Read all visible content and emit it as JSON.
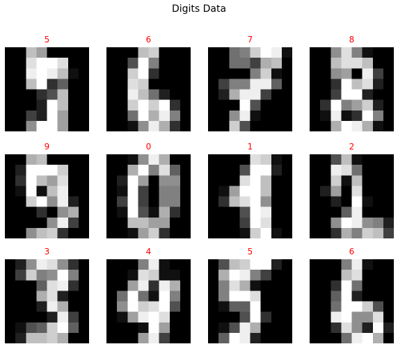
{
  "chart_data": {
    "type": "heatmap",
    "title": "Digits Data",
    "colormap": "gray",
    "value_range": [
      0,
      16
    ],
    "grid": false,
    "label_color": "#ff0000",
    "panels": [
      {
        "label": "5",
        "pixels": [
          [
            0,
            0,
            12,
            10,
            0,
            0,
            0,
            0
          ],
          [
            0,
            0,
            14,
            16,
            16,
            14,
            0,
            0
          ],
          [
            0,
            0,
            15,
            16,
            15,
            12,
            1,
            0
          ],
          [
            0,
            0,
            12,
            16,
            3,
            6,
            0,
            0
          ],
          [
            0,
            0,
            0,
            3,
            5,
            12,
            0,
            0
          ],
          [
            0,
            0,
            0,
            2,
            16,
            12,
            0,
            0
          ],
          [
            0,
            0,
            4,
            2,
            16,
            10,
            0,
            0
          ],
          [
            0,
            0,
            9,
            16,
            16,
            10,
            0,
            0
          ]
        ]
      },
      {
        "label": "6",
        "pixels": [
          [
            0,
            0,
            0,
            12,
            13,
            0,
            0,
            0
          ],
          [
            0,
            0,
            5,
            16,
            8,
            0,
            0,
            0
          ],
          [
            0,
            0,
            13,
            16,
            3,
            0,
            0,
            0
          ],
          [
            0,
            0,
            14,
            13,
            0,
            0,
            0,
            0
          ],
          [
            0,
            0,
            15,
            12,
            7,
            2,
            0,
            0
          ],
          [
            0,
            0,
            13,
            16,
            13,
            16,
            3,
            0
          ],
          [
            0,
            0,
            7,
            16,
            11,
            15,
            8,
            0
          ],
          [
            0,
            0,
            1,
            9,
            15,
            11,
            3,
            0
          ]
        ]
      },
      {
        "label": "7",
        "pixels": [
          [
            0,
            0,
            7,
            8,
            13,
            16,
            15,
            1
          ],
          [
            0,
            0,
            7,
            7,
            4,
            11,
            12,
            0
          ],
          [
            0,
            0,
            0,
            0,
            8,
            13,
            1,
            0
          ],
          [
            0,
            4,
            8,
            8,
            15,
            15,
            6,
            0
          ],
          [
            0,
            2,
            11,
            15,
            15,
            4,
            0,
            0
          ],
          [
            0,
            0,
            0,
            16,
            5,
            0,
            0,
            0
          ],
          [
            0,
            0,
            9,
            15,
            1,
            0,
            0,
            0
          ],
          [
            0,
            0,
            13,
            5,
            0,
            0,
            0,
            0
          ]
        ]
      },
      {
        "label": "8",
        "pixels": [
          [
            0,
            0,
            9,
            14,
            8,
            1,
            0,
            0
          ],
          [
            0,
            0,
            12,
            14,
            14,
            12,
            0,
            0
          ],
          [
            0,
            0,
            9,
            10,
            0,
            15,
            4,
            0
          ],
          [
            0,
            0,
            3,
            16,
            12,
            14,
            2,
            0
          ],
          [
            0,
            0,
            4,
            16,
            16,
            2,
            0,
            0
          ],
          [
            0,
            3,
            16,
            8,
            10,
            13,
            2,
            0
          ],
          [
            0,
            1,
            15,
            1,
            3,
            16,
            8,
            0
          ],
          [
            0,
            0,
            11,
            16,
            15,
            11,
            1,
            0
          ]
        ]
      },
      {
        "label": "9",
        "pixels": [
          [
            0,
            0,
            11,
            12,
            0,
            0,
            0,
            0
          ],
          [
            0,
            2,
            16,
            16,
            16,
            13,
            0,
            0
          ],
          [
            0,
            3,
            16,
            12,
            10,
            14,
            0,
            0
          ],
          [
            0,
            1,
            16,
            1,
            12,
            15,
            0,
            0
          ],
          [
            0,
            0,
            13,
            16,
            9,
            15,
            2,
            0
          ],
          [
            0,
            0,
            0,
            3,
            0,
            9,
            11,
            0
          ],
          [
            0,
            0,
            0,
            0,
            9,
            15,
            4,
            0
          ],
          [
            0,
            0,
            9,
            12,
            13,
            3,
            0,
            0
          ]
        ]
      },
      {
        "label": "0",
        "pixels": [
          [
            0,
            0,
            1,
            9,
            15,
            11,
            0,
            0
          ],
          [
            0,
            0,
            11,
            16,
            8,
            14,
            6,
            0
          ],
          [
            0,
            2,
            16,
            10,
            0,
            9,
            9,
            0
          ],
          [
            0,
            1,
            16,
            4,
            0,
            8,
            8,
            0
          ],
          [
            0,
            4,
            16,
            4,
            0,
            8,
            8,
            0
          ],
          [
            0,
            1,
            16,
            5,
            1,
            11,
            3,
            0
          ],
          [
            0,
            0,
            12,
            12,
            10,
            10,
            0,
            0
          ],
          [
            0,
            0,
            1,
            10,
            13,
            3,
            0,
            0
          ]
        ]
      },
      {
        "label": "1",
        "pixels": [
          [
            0,
            0,
            0,
            0,
            14,
            13,
            1,
            0
          ],
          [
            0,
            0,
            0,
            5,
            16,
            16,
            2,
            0
          ],
          [
            0,
            0,
            0,
            14,
            16,
            12,
            0,
            0
          ],
          [
            0,
            1,
            10,
            16,
            16,
            12,
            0,
            0
          ],
          [
            0,
            3,
            12,
            14,
            16,
            9,
            0,
            0
          ],
          [
            0,
            0,
            0,
            5,
            16,
            15,
            0,
            0
          ],
          [
            0,
            0,
            0,
            4,
            16,
            14,
            0,
            0
          ],
          [
            0,
            0,
            0,
            1,
            13,
            16,
            1,
            0
          ]
        ]
      },
      {
        "label": "2",
        "pixels": [
          [
            0,
            0,
            5,
            12,
            1,
            0,
            0,
            0
          ],
          [
            0,
            0,
            15,
            14,
            7,
            0,
            0,
            0
          ],
          [
            0,
            0,
            13,
            1,
            12,
            0,
            0,
            0
          ],
          [
            0,
            2,
            10,
            0,
            14,
            0,
            0,
            0
          ],
          [
            0,
            0,
            2,
            0,
            16,
            1,
            0,
            0
          ],
          [
            0,
            0,
            0,
            6,
            15,
            0,
            0,
            0
          ],
          [
            0,
            0,
            9,
            16,
            15,
            9,
            8,
            2
          ],
          [
            0,
            0,
            3,
            11,
            8,
            13,
            12,
            4
          ]
        ]
      },
      {
        "label": "3",
        "pixels": [
          [
            0,
            2,
            9,
            15,
            14,
            9,
            3,
            0
          ],
          [
            0,
            4,
            13,
            8,
            9,
            16,
            8,
            0
          ],
          [
            0,
            0,
            0,
            6,
            14,
            15,
            3,
            0
          ],
          [
            0,
            0,
            0,
            11,
            14,
            2,
            0,
            0
          ],
          [
            0,
            0,
            0,
            2,
            15,
            11,
            0,
            0
          ],
          [
            0,
            0,
            0,
            0,
            2,
            15,
            4,
            0
          ],
          [
            0,
            1,
            5,
            6,
            13,
            16,
            6,
            0
          ],
          [
            0,
            2,
            12,
            12,
            13,
            11,
            0,
            0
          ]
        ]
      },
      {
        "label": "4",
        "pixels": [
          [
            0,
            0,
            0,
            8,
            15,
            1,
            0,
            0
          ],
          [
            0,
            0,
            1,
            14,
            13,
            1,
            1,
            0
          ],
          [
            0,
            0,
            10,
            15,
            3,
            15,
            11,
            0
          ],
          [
            0,
            7,
            16,
            7,
            1,
            16,
            8,
            0
          ],
          [
            0,
            9,
            16,
            13,
            14,
            16,
            5,
            0
          ],
          [
            0,
            1,
            10,
            15,
            16,
            14,
            0,
            0
          ],
          [
            0,
            0,
            0,
            1,
            16,
            10,
            0,
            0
          ],
          [
            0,
            0,
            0,
            10,
            15,
            4,
            0,
            0
          ]
        ]
      },
      {
        "label": "5",
        "pixels": [
          [
            0,
            5,
            12,
            13,
            16,
            16,
            2,
            0
          ],
          [
            0,
            11,
            16,
            15,
            8,
            4,
            0,
            0
          ],
          [
            0,
            8,
            14,
            11,
            1,
            0,
            0,
            0
          ],
          [
            0,
            8,
            16,
            16,
            14,
            0,
            0,
            0
          ],
          [
            0,
            1,
            6,
            6,
            16,
            0,
            0,
            0
          ],
          [
            0,
            0,
            0,
            5,
            16,
            3,
            0,
            0
          ],
          [
            0,
            1,
            5,
            15,
            11,
            0,
            0,
            0
          ],
          [
            0,
            6,
            16,
            15,
            2,
            0,
            0,
            0
          ]
        ]
      },
      {
        "label": "6",
        "pixels": [
          [
            0,
            0,
            0,
            8,
            15,
            1,
            0,
            0
          ],
          [
            0,
            0,
            0,
            12,
            14,
            0,
            0,
            0
          ],
          [
            0,
            0,
            3,
            16,
            7,
            0,
            0,
            0
          ],
          [
            0,
            0,
            6,
            16,
            2,
            0,
            0,
            0
          ],
          [
            0,
            0,
            7,
            16,
            16,
            13,
            5,
            0
          ],
          [
            0,
            0,
            15,
            16,
            9,
            9,
            14,
            0
          ],
          [
            0,
            0,
            3,
            14,
            9,
            2,
            16,
            2
          ],
          [
            0,
            0,
            0,
            7,
            15,
            16,
            11,
            0
          ]
        ]
      }
    ]
  }
}
